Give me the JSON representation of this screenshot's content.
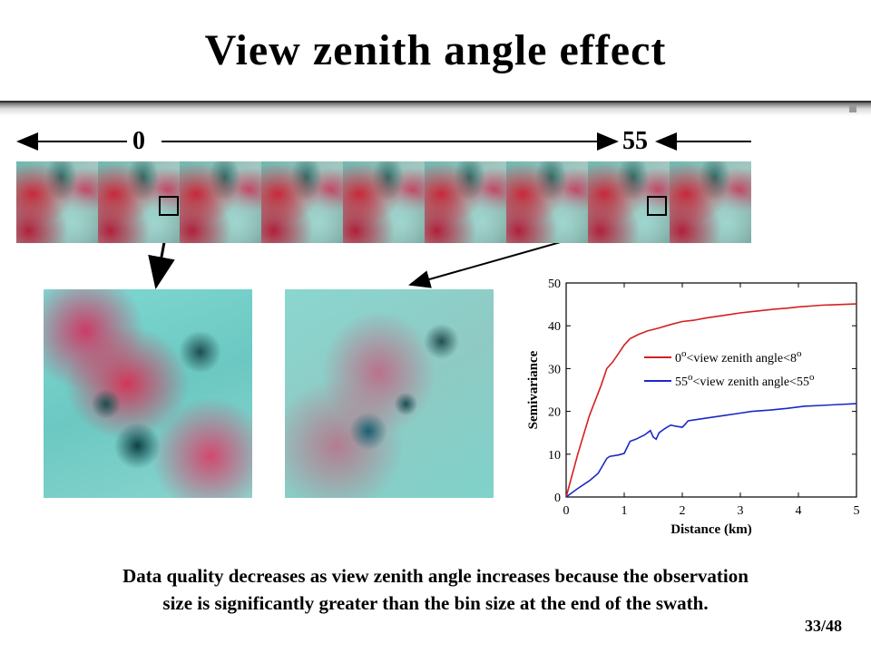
{
  "slide": {
    "title": "View zenith angle effect",
    "angle_start": "0",
    "angle_end": "55",
    "caption_line1": "Data quality decreases as view zenith angle increases because the observation",
    "caption_line2": "size is significantly greater than the bin size at the end of the swath.",
    "page_number": "33/48"
  },
  "chart_data": {
    "type": "line",
    "xlabel": "Distance (km)",
    "ylabel": "Semivariance",
    "xlim": [
      0,
      5
    ],
    "ylim": [
      0,
      50
    ],
    "xticks": [
      0,
      1,
      2,
      3,
      4,
      5
    ],
    "yticks": [
      0,
      10,
      20,
      30,
      40,
      50
    ],
    "legend_position": "center-right",
    "series": [
      {
        "name": "0°<view zenith angle<8°",
        "legend_parts": [
          "0",
          "o",
          "<view zenith angle<8",
          "o"
        ],
        "color": "#d42020",
        "points": [
          [
            0,
            0
          ],
          [
            0.2,
            10
          ],
          [
            0.4,
            19
          ],
          [
            0.6,
            26
          ],
          [
            0.7,
            30
          ],
          [
            0.8,
            31.5
          ],
          [
            0.9,
            33.5
          ],
          [
            1.0,
            35.5
          ],
          [
            1.1,
            37
          ],
          [
            1.25,
            38
          ],
          [
            1.4,
            38.8
          ],
          [
            1.6,
            39.5
          ],
          [
            1.8,
            40.3
          ],
          [
            2.0,
            41
          ],
          [
            2.2,
            41.3
          ],
          [
            2.4,
            41.8
          ],
          [
            2.6,
            42.2
          ],
          [
            2.8,
            42.6
          ],
          [
            3.0,
            43
          ],
          [
            3.2,
            43.3
          ],
          [
            3.4,
            43.6
          ],
          [
            3.6,
            43.9
          ],
          [
            3.8,
            44.1
          ],
          [
            4.0,
            44.4
          ],
          [
            4.2,
            44.6
          ],
          [
            4.4,
            44.8
          ],
          [
            4.6,
            44.9
          ],
          [
            4.8,
            45
          ],
          [
            5.0,
            45.1
          ]
        ]
      },
      {
        "name": "55°<view zenith angle<55°",
        "legend_parts": [
          "55",
          "o",
          "<view zenith angle<55",
          "o"
        ],
        "color": "#1c28c8",
        "points": [
          [
            0,
            0
          ],
          [
            0.2,
            2
          ],
          [
            0.4,
            3.8
          ],
          [
            0.55,
            5.5
          ],
          [
            0.7,
            9
          ],
          [
            0.75,
            9.5
          ],
          [
            0.9,
            9.8
          ],
          [
            1.0,
            10.2
          ],
          [
            1.1,
            13
          ],
          [
            1.2,
            13.5
          ],
          [
            1.35,
            14.5
          ],
          [
            1.45,
            15.5
          ],
          [
            1.5,
            14
          ],
          [
            1.55,
            13.5
          ],
          [
            1.6,
            15
          ],
          [
            1.7,
            16
          ],
          [
            1.8,
            16.8
          ],
          [
            1.9,
            16.5
          ],
          [
            2.0,
            16.3
          ],
          [
            2.05,
            17
          ],
          [
            2.1,
            17.8
          ],
          [
            2.3,
            18.2
          ],
          [
            2.5,
            18.6
          ],
          [
            2.7,
            19
          ],
          [
            3.0,
            19.6
          ],
          [
            3.2,
            20
          ],
          [
            3.5,
            20.3
          ],
          [
            3.8,
            20.7
          ],
          [
            4.1,
            21.2
          ],
          [
            4.4,
            21.4
          ],
          [
            4.7,
            21.6
          ],
          [
            5.0,
            21.8
          ]
        ]
      }
    ]
  }
}
